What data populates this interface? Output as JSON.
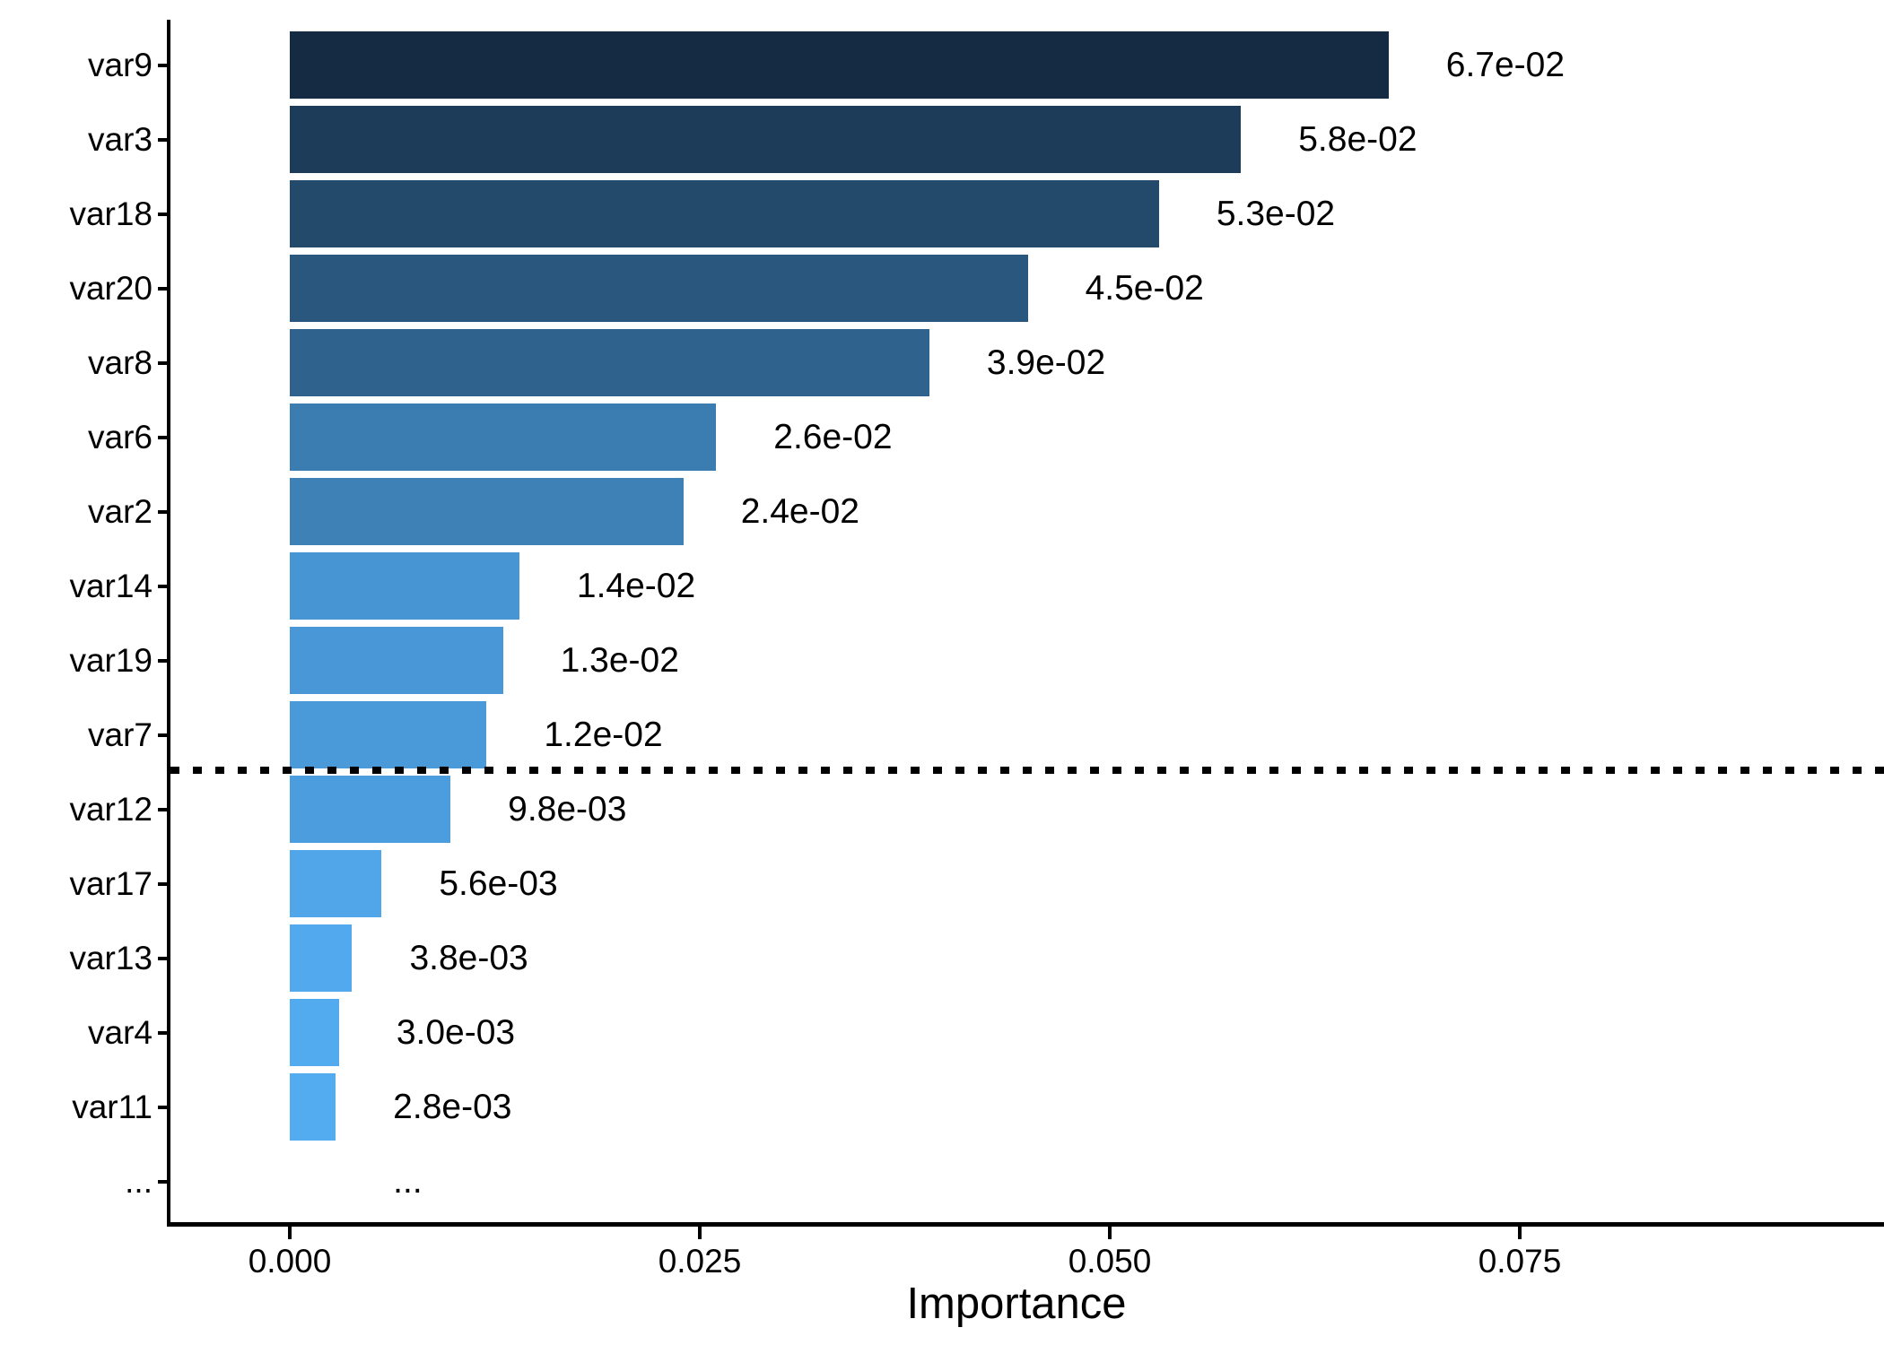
{
  "chart_data": {
    "type": "bar",
    "orientation": "horizontal",
    "title": "",
    "xlabel": "Importance",
    "ylabel": "",
    "x_axis": {
      "tick_values": [
        0.0,
        0.025,
        0.05,
        0.075
      ],
      "tick_labels": [
        "0.000",
        "0.025",
        "0.050",
        "0.075"
      ],
      "range": [
        -0.0074,
        0.0972
      ],
      "grid": "off"
    },
    "legend": "none",
    "bars": [
      {
        "category": "var9",
        "value": 0.067,
        "value_label": "6.7e-02",
        "color": "#142B43"
      },
      {
        "category": "var3",
        "value": 0.058,
        "value_label": "5.8e-02",
        "color": "#1C3C59"
      },
      {
        "category": "var18",
        "value": 0.053,
        "value_label": "5.3e-02",
        "color": "#234A6B"
      },
      {
        "category": "var20",
        "value": 0.045,
        "value_label": "4.5e-02",
        "color": "#29577E"
      },
      {
        "category": "var8",
        "value": 0.039,
        "value_label": "3.9e-02",
        "color": "#2F638E"
      },
      {
        "category": "var6",
        "value": 0.026,
        "value_label": "2.6e-02",
        "color": "#3C7DB1"
      },
      {
        "category": "var2",
        "value": 0.024,
        "value_label": "2.4e-02",
        "color": "#3E81B7"
      },
      {
        "category": "var14",
        "value": 0.014,
        "value_label": "1.4e-02",
        "color": "#4895D3"
      },
      {
        "category": "var19",
        "value": 0.013,
        "value_label": "1.3e-02",
        "color": "#4997D6"
      },
      {
        "category": "var7",
        "value": 0.012,
        "value_label": "1.2e-02",
        "color": "#4A99D8"
      },
      {
        "category": "var12",
        "value": 0.0098,
        "value_label": "9.8e-03",
        "color": "#4C9DDD"
      },
      {
        "category": "var17",
        "value": 0.0056,
        "value_label": "5.6e-03",
        "color": "#50A6E8"
      },
      {
        "category": "var13",
        "value": 0.0038,
        "value_label": "3.8e-03",
        "color": "#52A9ED"
      },
      {
        "category": "var4",
        "value": 0.003,
        "value_label": "3.0e-03",
        "color": "#53ABEF"
      },
      {
        "category": "var11",
        "value": 0.0028,
        "value_label": "2.8e-03",
        "color": "#54ACF0"
      },
      {
        "category": "...",
        "value": null,
        "value_label": "...",
        "color": null
      }
    ],
    "reference_line": {
      "style": "dotted",
      "color": "#000000",
      "between_categories": [
        "var7",
        "var12"
      ]
    },
    "colors": {
      "gradient_high_value": "#132B43",
      "gradient_low_value": "#56B1F7",
      "axis": "#000000",
      "text": "#000000",
      "background": "#FFFFFF"
    }
  }
}
